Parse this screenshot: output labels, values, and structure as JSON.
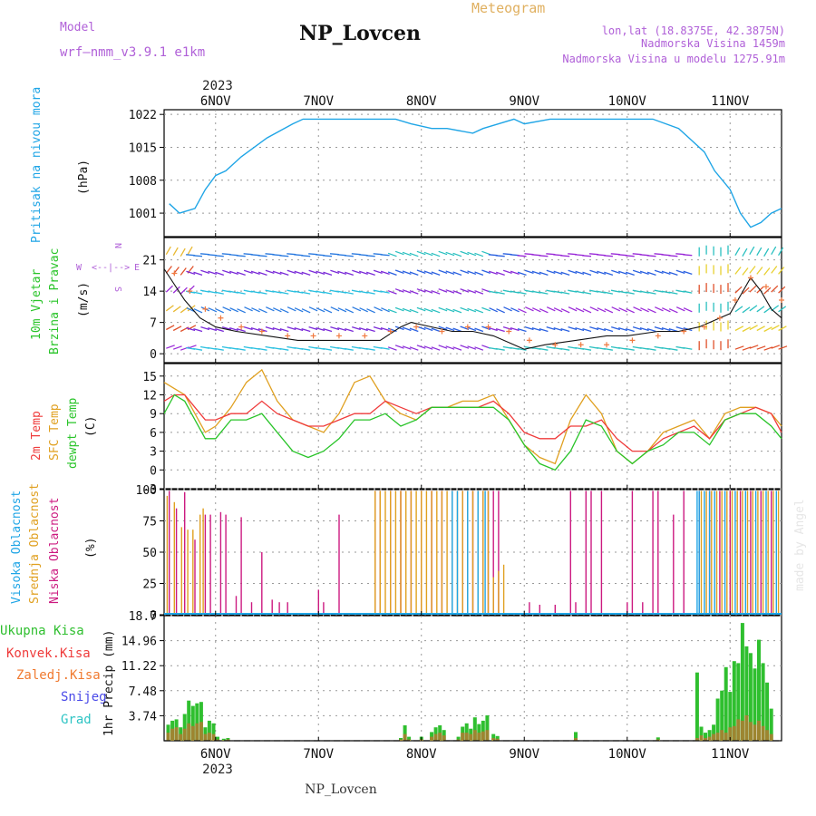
{
  "header": {
    "model_label": "Model",
    "model_name": "wrf—nmm_v3.9.1 e1km",
    "station": "NP_Lovcen",
    "product": "Meteogram",
    "lonlat": "lon,lat (18.8375E, 42.3875N)",
    "elevation": "Nadmorska Visina 1459m",
    "model_elevation": "Nadmorska Visina u modelu 1275.91m",
    "footer_station": "NP_Lovcen",
    "watermark": "made by Angel"
  },
  "colors": {
    "pressure": "#1fa5e6",
    "temp2m": "#ef3b3b",
    "sfc": "#e0a020",
    "dew": "#29c429",
    "high_cloud": "#1fa5e6",
    "mid_cloud": "#e0a020",
    "low_cloud": "#cc1a80",
    "total_precip": "#2fbf2f",
    "conv_precip": "#ef3b3b",
    "freezing": "#f07a30",
    "snow": "#4a4ae8",
    "hail": "#2ec4c4",
    "purple_text": "#b060d8",
    "grid": "#999999"
  },
  "chart_data": [
    {
      "type": "line",
      "title": "Pritisak na nivou mora",
      "ylabel": "(hPa)",
      "yticks": [
        "1022",
        "1015",
        "1008",
        "1001"
      ],
      "ylim": [
        996,
        1023
      ],
      "x": [
        5.55,
        5.65,
        5.8,
        5.9,
        6.0,
        6.1,
        6.25,
        6.5,
        6.75,
        6.85,
        7.0,
        7.25,
        7.5,
        7.75,
        7.9,
        8.1,
        8.25,
        8.5,
        8.6,
        8.75,
        8.9,
        9.0,
        9.25,
        9.5,
        9.75,
        10.0,
        10.25,
        10.5,
        10.75,
        10.85,
        11.0,
        11.1,
        11.2,
        11.3,
        11.4,
        11.5
      ],
      "series": [
        {
          "values": [
            1003,
            1001,
            1002,
            1006,
            1009,
            1010,
            1013,
            1017,
            1020,
            1021,
            1021,
            1021,
            1021,
            1021,
            1020,
            1019,
            1019,
            1018,
            1019,
            1020,
            1021,
            1020,
            1021,
            1021,
            1021,
            1021,
            1021,
            1019,
            1014,
            1010,
            1006,
            1001,
            998,
            999,
            1001,
            1002
          ]
        }
      ]
    },
    {
      "type": "line",
      "title": "10m Vjetar",
      "subtitle": "Brzina i Pravac",
      "ylabel": "(m/s)",
      "yticks": [
        "21",
        "14",
        "7",
        "0"
      ],
      "ylim": [
        -2,
        26
      ],
      "compass": [
        "N",
        "S",
        "W",
        "E"
      ],
      "x": [
        5.5,
        5.7,
        5.85,
        6.0,
        6.2,
        6.5,
        6.8,
        7.0,
        7.3,
        7.6,
        7.8,
        7.9,
        8.1,
        8.3,
        8.5,
        8.7,
        8.9,
        9.0,
        9.2,
        9.5,
        9.8,
        10.0,
        10.3,
        10.5,
        10.7,
        10.9,
        11.0,
        11.1,
        11.2,
        11.3,
        11.4,
        11.5
      ],
      "series": [
        {
          "name": "speed",
          "values": [
            19,
            12,
            8,
            6,
            5,
            4,
            3,
            3,
            3,
            3,
            6,
            7,
            6,
            5,
            5,
            4,
            2,
            1,
            2,
            3,
            4,
            4,
            5,
            5,
            6,
            8,
            9,
            13,
            17,
            14,
            10,
            8
          ]
        }
      ],
      "gust_x": [
        5.6,
        5.75,
        5.9,
        6.05,
        6.25,
        6.45,
        6.7,
        6.95,
        7.2,
        7.45,
        7.7,
        7.95,
        8.2,
        8.45,
        8.65,
        8.85,
        9.05,
        9.3,
        9.55,
        9.8,
        10.05,
        10.3,
        10.55,
        10.75,
        10.9,
        11.05,
        11.2,
        11.35,
        11.5
      ],
      "gust_values": [
        18,
        14,
        10,
        8,
        6,
        5,
        4,
        4,
        4,
        4,
        5,
        6,
        5,
        6,
        6,
        5,
        3,
        2,
        2,
        2,
        3,
        4,
        5,
        6,
        8,
        12,
        17,
        15,
        12
      ]
    },
    {
      "type": "line",
      "series_labels": [
        "2m Temp",
        "SFC Temp",
        "dewpt Temp"
      ],
      "ylabel": "(C)",
      "yticks": [
        "15",
        "12",
        "9",
        "6",
        "3",
        "0",
        "-3"
      ],
      "ylim": [
        -3,
        17
      ],
      "x": [
        5.5,
        5.6,
        5.7,
        5.8,
        5.9,
        6.0,
        6.15,
        6.3,
        6.45,
        6.6,
        6.75,
        6.9,
        7.05,
        7.2,
        7.35,
        7.5,
        7.65,
        7.8,
        7.95,
        8.1,
        8.25,
        8.4,
        8.55,
        8.7,
        8.85,
        9.0,
        9.15,
        9.3,
        9.45,
        9.6,
        9.75,
        9.9,
        10.05,
        10.2,
        10.35,
        10.5,
        10.65,
        10.8,
        10.95,
        11.1,
        11.25,
        11.4,
        11.5
      ],
      "series": [
        {
          "name": "2m Temp",
          "values": [
            11,
            12,
            12,
            10,
            8,
            8,
            9,
            9,
            11,
            9,
            8,
            7,
            7,
            8,
            9,
            9,
            11,
            10,
            9,
            10,
            10,
            10,
            10,
            11,
            9,
            6,
            5,
            5,
            7,
            7,
            8,
            5,
            3,
            3,
            5,
            6,
            7,
            5,
            8,
            9,
            10,
            9,
            6
          ]
        },
        {
          "name": "SFC Temp",
          "values": [
            14,
            13,
            12,
            9,
            6,
            7,
            10,
            14,
            16,
            11,
            8,
            7,
            6,
            9,
            14,
            15,
            11,
            9,
            8,
            10,
            10,
            11,
            11,
            12,
            8,
            4,
            2,
            1,
            8,
            12,
            9,
            3,
            1,
            3,
            6,
            7,
            8,
            5,
            9,
            10,
            10,
            9,
            7
          ]
        },
        {
          "name": "dewpt Temp",
          "values": [
            9,
            12,
            11,
            8,
            5,
            5,
            8,
            8,
            9,
            6,
            3,
            2,
            3,
            5,
            8,
            8,
            9,
            7,
            8,
            10,
            10,
            10,
            10,
            10,
            8,
            4,
            1,
            0,
            3,
            8,
            7,
            3,
            1,
            3,
            4,
            6,
            6,
            4,
            8,
            9,
            9,
            7,
            5
          ]
        }
      ]
    },
    {
      "type": "bar",
      "series_labels": [
        "Visoka Oblacnost",
        "Srednja Oblacnost",
        "Niska Oblacnost"
      ],
      "ylabel": "(%)",
      "yticks": [
        "100",
        "75",
        "50",
        "25",
        "0"
      ],
      "ylim": [
        0,
        100
      ],
      "series": [
        {
          "name": "Niska Oblacnost",
          "x": [
            5.55,
            5.62,
            5.7,
            5.8,
            5.9,
            5.95,
            6.05,
            6.1,
            6.2,
            6.25,
            6.35,
            6.45,
            6.55,
            6.62,
            6.7,
            7.0,
            7.05,
            7.2,
            7.55,
            7.6,
            7.7,
            7.8,
            7.9,
            8.0,
            8.1,
            8.2,
            8.3,
            8.4,
            8.5,
            8.6,
            8.65,
            8.7,
            8.75,
            9.05,
            9.15,
            9.3,
            9.45,
            9.5,
            9.6,
            9.65,
            9.75,
            10.0,
            10.05,
            10.15,
            10.25,
            10.3,
            10.45,
            10.55,
            10.7,
            10.8,
            10.9,
            11.0,
            11.1,
            11.2,
            11.3,
            11.4
          ],
          "values": [
            99,
            85,
            98,
            60,
            80,
            80,
            82,
            80,
            15,
            78,
            10,
            50,
            12,
            10,
            10,
            20,
            10,
            80,
            99,
            99,
            99,
            99,
            99,
            99,
            99,
            99,
            99,
            99,
            99,
            99,
            99,
            99,
            99,
            10,
            8,
            8,
            99,
            10,
            99,
            99,
            99,
            10,
            99,
            10,
            99,
            99,
            80,
            99,
            99,
            99,
            99,
            99,
            99,
            99,
            99,
            99
          ]
        },
        {
          "name": "Srednja Oblacnost",
          "x": [
            5.53,
            5.6,
            5.67,
            5.73,
            5.78,
            5.85,
            5.88,
            7.55,
            7.6,
            7.65,
            7.7,
            7.75,
            7.8,
            7.85,
            7.9,
            7.95,
            8.0,
            8.05,
            8.1,
            8.15,
            8.2,
            8.25,
            8.3,
            8.35,
            8.4,
            8.45,
            8.5,
            8.55,
            8.6,
            8.65,
            8.7,
            8.75,
            8.8,
            10.72,
            10.77,
            10.82,
            10.87,
            10.92,
            10.97,
            11.02,
            11.07,
            11.12,
            11.17,
            11.22,
            11.27,
            11.32,
            11.37,
            11.42,
            11.47
          ],
          "values": [
            95,
            90,
            70,
            68,
            68,
            80,
            85,
            99,
            99,
            99,
            99,
            99,
            99,
            99,
            99,
            99,
            99,
            99,
            99,
            99,
            99,
            99,
            99,
            99,
            99,
            99,
            99,
            99,
            99,
            99,
            30,
            35,
            40,
            99,
            99,
            99,
            99,
            99,
            99,
            99,
            99,
            99,
            99,
            99,
            99,
            99,
            99,
            99,
            99
          ]
        },
        {
          "name": "Visoka Oblacnost",
          "x": [
            8.3,
            8.35,
            8.45,
            8.55,
            8.62,
            10.68,
            10.7,
            10.75,
            10.8,
            10.85,
            10.95,
            11.05,
            11.15,
            11.25,
            11.35,
            11.45
          ],
          "values": [
            99,
            99,
            99,
            99,
            99,
            99,
            99,
            99,
            99,
            99,
            99,
            99,
            99,
            99,
            99,
            99
          ]
        }
      ]
    },
    {
      "type": "bar",
      "series_labels": [
        "Ukupna Kisa",
        "Konvek.Kisa",
        "Zaledj.Kisa",
        "Snijeg",
        "Grad"
      ],
      "ylabel": "1hr Precip (mm)",
      "yticks": [
        "18.7",
        "14.96",
        "11.22",
        "7.48",
        "3.74"
      ],
      "ylim": [
        0,
        18.7
      ],
      "x": [
        5.54,
        5.58,
        5.62,
        5.66,
        5.7,
        5.74,
        5.78,
        5.82,
        5.86,
        5.9,
        5.94,
        5.98,
        6.02,
        6.08,
        6.12,
        7.8,
        7.84,
        7.88,
        8.0,
        8.1,
        8.14,
        8.18,
        8.22,
        8.36,
        8.4,
        8.44,
        8.48,
        8.52,
        8.56,
        8.6,
        8.64,
        8.7,
        8.74,
        9.5,
        10.3,
        10.68,
        10.72,
        10.76,
        10.8,
        10.84,
        10.88,
        10.92,
        10.96,
        11.0,
        11.04,
        11.08,
        11.12,
        11.16,
        11.2,
        11.24,
        11.28,
        11.32,
        11.36,
        11.4
      ],
      "series": [
        {
          "name": "Ukupna Kisa",
          "values": [
            2.4,
            3.0,
            3.2,
            2.0,
            4.0,
            6.0,
            5.2,
            5.6,
            5.8,
            2.0,
            3.0,
            2.6,
            0.6,
            0.3,
            0.4,
            0.4,
            2.3,
            0.6,
            0.6,
            1.3,
            2.0,
            2.3,
            1.6,
            0.6,
            2.1,
            2.6,
            1.8,
            3.5,
            2.5,
            3.0,
            3.8,
            1.0,
            0.7,
            1.3,
            0.5,
            10.2,
            2.1,
            1.2,
            1.6,
            2.4,
            6.3,
            7.5,
            11.0,
            7.3,
            11.9,
            11.6,
            17.6,
            14.1,
            13.1,
            10.8,
            15.1,
            11.6,
            8.7,
            4.8
          ]
        },
        {
          "name": "Konvek.Kisa",
          "values": [
            1.2,
            1.8,
            2.0,
            1.0,
            1.8,
            2.6,
            2.2,
            2.6,
            2.8,
            1.0,
            1.2,
            1.0,
            0.2,
            0.1,
            0.2,
            0.2,
            1.0,
            0.2,
            0.2,
            0.6,
            1.0,
            1.2,
            0.8,
            0.2,
            1.2,
            1.2,
            1.0,
            1.6,
            1.2,
            1.4,
            1.6,
            0.4,
            0.3,
            0.4,
            0.2,
            0.4,
            0.8,
            0.4,
            0.6,
            1.0,
            1.2,
            1.6,
            1.2,
            2.0,
            2.2,
            3.2,
            3.0,
            3.8,
            2.8,
            2.4,
            3.0,
            2.2,
            1.6,
            1.0
          ]
        }
      ]
    }
  ],
  "time_axis": {
    "labels": [
      "6NOV",
      "7NOV",
      "8NOV",
      "9NOV",
      "10NOV",
      "11NOV"
    ],
    "day_values": [
      6,
      7,
      8,
      9,
      10,
      11
    ],
    "year": "2023",
    "xlim": [
      5.5,
      11.5
    ]
  }
}
